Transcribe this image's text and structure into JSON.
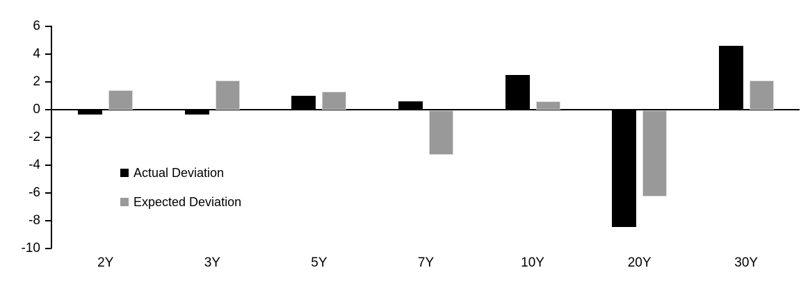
{
  "chart_data": {
    "type": "bar",
    "title": "",
    "xlabel": "",
    "ylabel": "",
    "categories": [
      "2Y",
      "3Y",
      "5Y",
      "7Y",
      "10Y",
      "20Y",
      "30Y"
    ],
    "series": [
      {
        "name": "Actual Deviation",
        "color": "#000000",
        "values": [
          -0.3,
          -0.3,
          1.0,
          0.6,
          2.5,
          -8.4,
          4.6
        ]
      },
      {
        "name": "Expected Deviation",
        "color": "#999999",
        "values": [
          1.4,
          2.1,
          1.3,
          -3.2,
          0.6,
          -6.2,
          2.1
        ]
      }
    ],
    "ylim": [
      -10,
      6
    ],
    "yticks": [
      6,
      4,
      2,
      0,
      -2,
      -4,
      -6,
      -8,
      -10
    ],
    "grid": false,
    "legend_position": "inside-left",
    "axis_color": "#000000"
  }
}
